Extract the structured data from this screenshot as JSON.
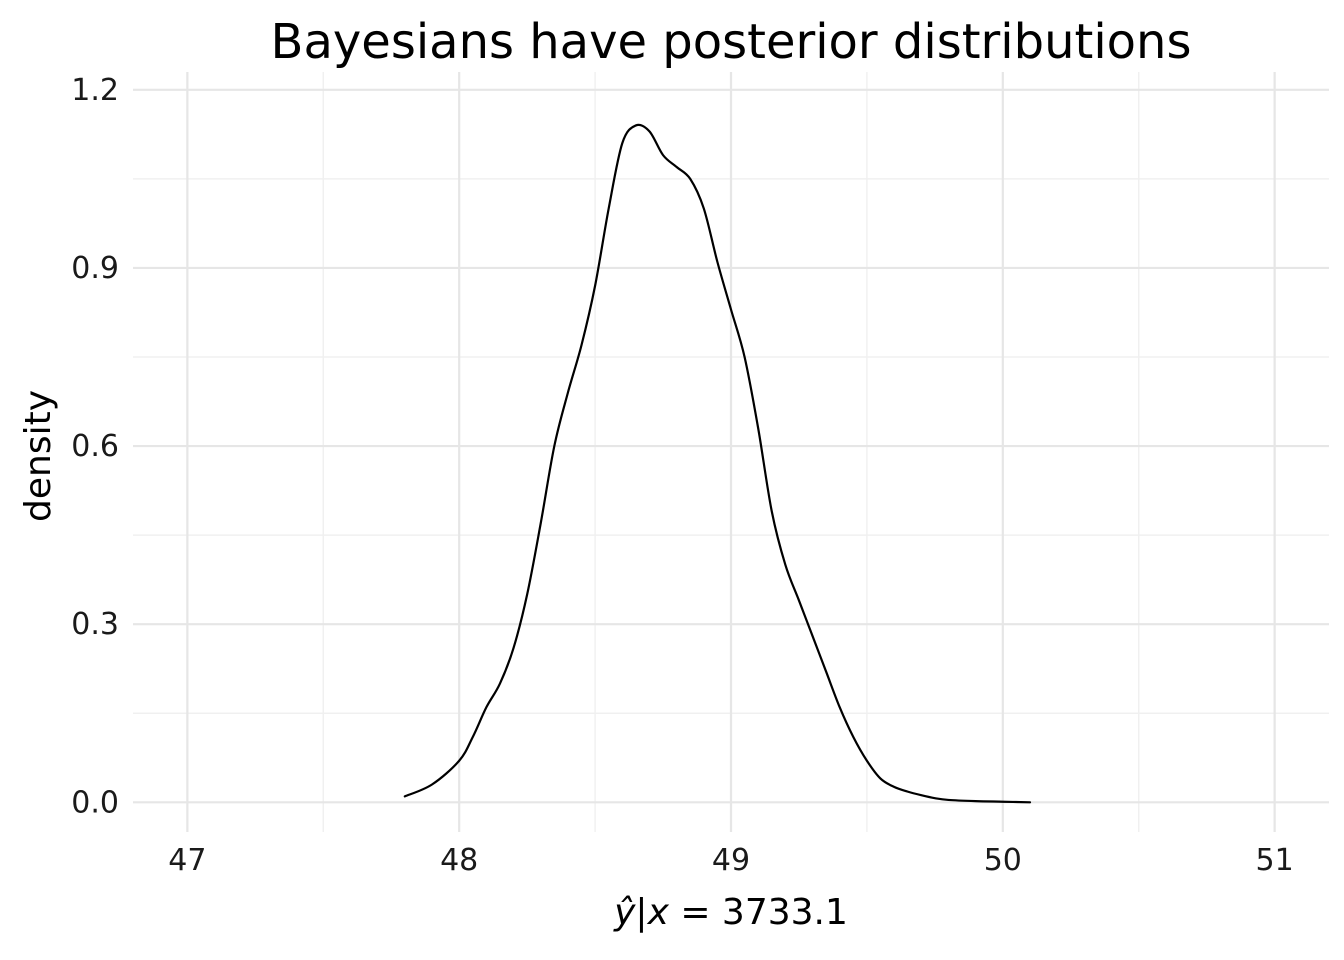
{
  "chart_data": {
    "type": "line",
    "title": "Bayesians have posterior distributions",
    "xlabel": "ŷ | x = 3733.1",
    "xlabel_parts": {
      "y_hat": "ŷ",
      "bar": "|",
      "x_var": "x",
      "rest": " = 3733.1"
    },
    "ylabel": "density",
    "xlim": [
      46.8,
      51.2
    ],
    "ylim": [
      -0.05,
      1.23
    ],
    "x_ticks": [
      47,
      48,
      49,
      50,
      51
    ],
    "x_tick_labels": [
      "47",
      "48",
      "49",
      "50",
      "51"
    ],
    "y_ticks": [
      0.0,
      0.3,
      0.6,
      0.9,
      1.2
    ],
    "y_tick_labels": [
      "0.0",
      "0.3",
      "0.6",
      "0.9",
      "1.2"
    ],
    "grid": true,
    "line_color": "#000000",
    "grid_color": "#e6e6e6",
    "series": [
      {
        "x": [
          47.8,
          47.9,
          48.0,
          48.05,
          48.1,
          48.15,
          48.2,
          48.25,
          48.3,
          48.35,
          48.4,
          48.45,
          48.5,
          48.55,
          48.6,
          48.65,
          48.7,
          48.75,
          48.8,
          48.85,
          48.9,
          48.95,
          49.0,
          49.05,
          49.1,
          49.15,
          49.2,
          49.25,
          49.3,
          49.35,
          49.4,
          49.45,
          49.5,
          49.55,
          49.6,
          49.65,
          49.7,
          49.75,
          49.8,
          49.9,
          50.0,
          50.1
        ],
        "y": [
          0.01,
          0.03,
          0.07,
          0.11,
          0.16,
          0.2,
          0.26,
          0.35,
          0.47,
          0.6,
          0.69,
          0.77,
          0.87,
          1.0,
          1.11,
          1.14,
          1.13,
          1.09,
          1.07,
          1.05,
          1.0,
          0.91,
          0.83,
          0.75,
          0.63,
          0.49,
          0.4,
          0.34,
          0.28,
          0.22,
          0.16,
          0.11,
          0.07,
          0.04,
          0.026,
          0.018,
          0.012,
          0.007,
          0.004,
          0.002,
          0.001,
          0.0
        ]
      }
    ]
  }
}
